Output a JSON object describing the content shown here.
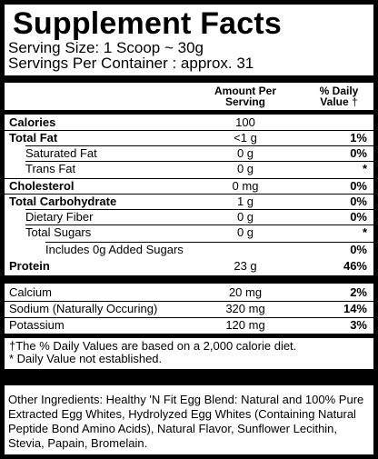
{
  "title": "Supplement Facts",
  "serving_size": "Serving Size: 1 Scoop ~ 30g",
  "servings_per_container": "Servings Per Container : approx. 31",
  "columns": {
    "amount_line1": "Amount Per",
    "amount_line2": "Serving",
    "dv_line1": "% Daily",
    "dv_line2": "Value",
    "dv_marker": "†"
  },
  "rows": [
    {
      "label": "Calories",
      "amount": "100",
      "dv": ""
    },
    {
      "label": "Total  Fat",
      "amount": "<1 g",
      "dv": "1%"
    },
    {
      "label": "Saturated Fat",
      "amount": "0 g",
      "dv": "0%"
    },
    {
      "label": "Trans Fat",
      "amount": "0 g",
      "dv": "*"
    },
    {
      "label": "Cholesterol",
      "amount": "0 mg",
      "dv": "0%"
    },
    {
      "label": "Total Carbohydrate",
      "amount": "1 g",
      "dv": "0%"
    },
    {
      "label": "Dietary Fiber",
      "amount": "0 g",
      "dv": "0%"
    },
    {
      "label": "Total  Sugars",
      "amount": "0 g",
      "dv": "*"
    },
    {
      "label": "Includes 0g Added Sugars",
      "amount": "",
      "dv": "0%"
    },
    {
      "label": "Protein",
      "amount": "23 g",
      "dv": "46%"
    },
    {
      "label": "Calcium",
      "amount": "20 mg",
      "dv": "2%"
    },
    {
      "label": "Sodium (Naturally Occuring)",
      "amount": "320 mg",
      "dv": "14%"
    },
    {
      "label": "Potassium",
      "amount": "120 mg",
      "dv": "3%"
    }
  ],
  "footnotes": {
    "daily_values": "†The % Daily Values are based on a 2,000 calorie diet.",
    "not_established": "* Daily Value not established."
  },
  "ingredients": "Other Ingredients: Healthy 'N Fit Egg Blend: Natural and 100% Pure Extracted Egg Whites, Hydrolyzed Egg Whites (Containing Natural Peptide Bond Amino Acids), Natural Flavor, Sunflower Lecithin, Stevia, Papain, Bromelain."
}
